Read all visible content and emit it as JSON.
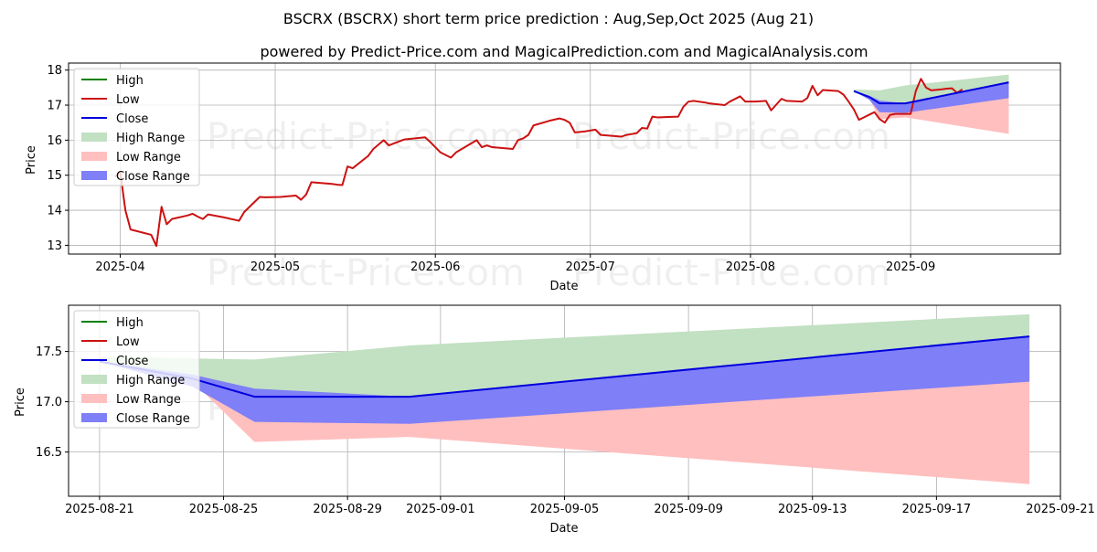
{
  "title": "BSCRX (BSCRX) short term price prediction : Aug,Sep,Oct 2025 (Aug 21)",
  "subtitle": "powered by Predict-Price.com and MagicalPrediction.com and MagicalAnalysis.com",
  "watermark": "Predict-Price.com",
  "colors": {
    "high": "#008000",
    "low": "#cc1111",
    "close": "#0000dd",
    "high_range": "#c2e0c2",
    "low_range": "#ffbfbf",
    "close_range": "#7f7ff7"
  },
  "legend": {
    "placement": "upper-left",
    "items": [
      {
        "label": "High",
        "kind": "line",
        "color": "#008000"
      },
      {
        "label": "Low",
        "kind": "line",
        "color": "#cc1111"
      },
      {
        "label": "Close",
        "kind": "line",
        "color": "#0000dd"
      },
      {
        "label": "High Range",
        "kind": "patch",
        "color": "#c2e0c2"
      },
      {
        "label": "Low Range",
        "kind": "patch",
        "color": "#ffbfbf"
      },
      {
        "label": "Close Range",
        "kind": "patch",
        "color": "#7f7ff7"
      }
    ]
  },
  "chart_data": [
    {
      "type": "line",
      "xlabel": "Date",
      "ylabel": "Price",
      "grid": true,
      "xlim": [
        "2025-03-22",
        "2025-09-30"
      ],
      "ylim": [
        12.75,
        18.2
      ],
      "xticks": [
        "2025-04",
        "2025-05",
        "2025-06",
        "2025-07",
        "2025-08",
        "2025-09"
      ],
      "xtick_dates": [
        "2025-04-01",
        "2025-05-01",
        "2025-06-01",
        "2025-07-01",
        "2025-08-01",
        "2025-09-01"
      ],
      "yticks": [
        13,
        14,
        15,
        16,
        17,
        18
      ],
      "history": [
        [
          "2025-03-31",
          14.95
        ],
        [
          "2025-04-01",
          15.1
        ],
        [
          "2025-04-02",
          14.0
        ],
        [
          "2025-04-03",
          13.45
        ],
        [
          "2025-04-07",
          13.3
        ],
        [
          "2025-04-08",
          12.98
        ],
        [
          "2025-04-09",
          14.1
        ],
        [
          "2025-04-10",
          13.6
        ],
        [
          "2025-04-11",
          13.75
        ],
        [
          "2025-04-14",
          13.85
        ],
        [
          "2025-04-15",
          13.9
        ],
        [
          "2025-04-16",
          13.82
        ],
        [
          "2025-04-17",
          13.75
        ],
        [
          "2025-04-18",
          13.88
        ],
        [
          "2025-04-21",
          13.8
        ],
        [
          "2025-04-24",
          13.7
        ],
        [
          "2025-04-25",
          13.95
        ],
        [
          "2025-04-28",
          14.38
        ],
        [
          "2025-04-29",
          14.37
        ],
        [
          "2025-05-02",
          14.38
        ],
        [
          "2025-05-05",
          14.42
        ],
        [
          "2025-05-06",
          14.3
        ],
        [
          "2025-05-07",
          14.45
        ],
        [
          "2025-05-08",
          14.8
        ],
        [
          "2025-05-12",
          14.75
        ],
        [
          "2025-05-13",
          14.73
        ],
        [
          "2025-05-14",
          14.72
        ],
        [
          "2025-05-15",
          15.25
        ],
        [
          "2025-05-16",
          15.2
        ],
        [
          "2025-05-19",
          15.55
        ],
        [
          "2025-05-20",
          15.75
        ],
        [
          "2025-05-22",
          16.0
        ],
        [
          "2025-05-23",
          15.85
        ],
        [
          "2025-05-26",
          16.02
        ],
        [
          "2025-05-30",
          16.08
        ],
        [
          "2025-05-31",
          15.95
        ],
        [
          "2025-06-02",
          15.65
        ],
        [
          "2025-06-04",
          15.5
        ],
        [
          "2025-06-05",
          15.65
        ],
        [
          "2025-06-09",
          16.0
        ],
        [
          "2025-06-10",
          15.8
        ],
        [
          "2025-06-11",
          15.85
        ],
        [
          "2025-06-12",
          15.8
        ],
        [
          "2025-06-16",
          15.75
        ],
        [
          "2025-06-17",
          16.0
        ],
        [
          "2025-06-18",
          16.05
        ],
        [
          "2025-06-19",
          16.15
        ],
        [
          "2025-06-20",
          16.42
        ],
        [
          "2025-06-23",
          16.55
        ],
        [
          "2025-06-25",
          16.62
        ],
        [
          "2025-06-26",
          16.58
        ],
        [
          "2025-06-27",
          16.5
        ],
        [
          "2025-06-28",
          16.22
        ],
        [
          "2025-06-30",
          16.25
        ],
        [
          "2025-07-02",
          16.3
        ],
        [
          "2025-07-03",
          16.15
        ],
        [
          "2025-07-07",
          16.1
        ],
        [
          "2025-07-08",
          16.15
        ],
        [
          "2025-07-10",
          16.2
        ],
        [
          "2025-07-11",
          16.35
        ],
        [
          "2025-07-12",
          16.33
        ],
        [
          "2025-07-13",
          16.67
        ],
        [
          "2025-07-14",
          16.65
        ],
        [
          "2025-07-16",
          16.66
        ],
        [
          "2025-07-18",
          16.67
        ],
        [
          "2025-07-19",
          16.95
        ],
        [
          "2025-07-20",
          17.1
        ],
        [
          "2025-07-21",
          17.12
        ],
        [
          "2025-07-23",
          17.08
        ],
        [
          "2025-07-24",
          17.05
        ],
        [
          "2025-07-27",
          17.0
        ],
        [
          "2025-07-28",
          17.1
        ],
        [
          "2025-07-30",
          17.25
        ],
        [
          "2025-07-31",
          17.1
        ],
        [
          "2025-08-02",
          17.1
        ],
        [
          "2025-08-04",
          17.12
        ],
        [
          "2025-08-05",
          16.85
        ],
        [
          "2025-08-07",
          17.18
        ],
        [
          "2025-08-08",
          17.12
        ],
        [
          "2025-08-11",
          17.1
        ],
        [
          "2025-08-12",
          17.2
        ],
        [
          "2025-08-13",
          17.55
        ],
        [
          "2025-08-14",
          17.28
        ],
        [
          "2025-08-15",
          17.43
        ],
        [
          "2025-08-18",
          17.4
        ],
        [
          "2025-08-19",
          17.3
        ],
        [
          "2025-08-20",
          17.1
        ],
        [
          "2025-08-21",
          16.88
        ],
        [
          "2025-08-22",
          16.58
        ],
        [
          "2025-08-25",
          16.8
        ],
        [
          "2025-08-26",
          16.6
        ],
        [
          "2025-08-27",
          16.5
        ],
        [
          "2025-08-28",
          16.72
        ],
        [
          "2025-08-29",
          16.75
        ],
        [
          "2025-09-01",
          16.75
        ],
        [
          "2025-09-02",
          17.4
        ],
        [
          "2025-09-03",
          17.75
        ],
        [
          "2025-09-04",
          17.5
        ],
        [
          "2025-09-05",
          17.42
        ],
        [
          "2025-09-07",
          17.45
        ],
        [
          "2025-09-08",
          17.47
        ],
        [
          "2025-09-09",
          17.48
        ],
        [
          "2025-09-10",
          17.35
        ],
        [
          "2025-09-11",
          17.45
        ]
      ]
    },
    {
      "type": "area",
      "xlabel": "Date",
      "ylabel": "Price",
      "grid": true,
      "xlim": [
        "2025-08-20",
        "2025-09-21"
      ],
      "ylim": [
        16.06,
        17.96
      ],
      "xticks": [
        "2025-08-21",
        "2025-08-25",
        "2025-08-29",
        "2025-09-01",
        "2025-09-05",
        "2025-09-09",
        "2025-09-13",
        "2025-09-17",
        "2025-09-21"
      ],
      "yticks": [
        "16.5",
        "17.0",
        "17.5"
      ],
      "forecast_dates": [
        "2025-08-21",
        "2025-08-24",
        "2025-08-26",
        "2025-08-31",
        "2025-09-20"
      ],
      "close": [
        17.4,
        17.23,
        17.05,
        17.05,
        17.65
      ],
      "high_range_top": [
        17.45,
        17.43,
        17.42,
        17.56,
        17.87
      ],
      "low_range_bottom": [
        17.4,
        17.2,
        16.6,
        16.65,
        16.18
      ],
      "close_range_top": [
        17.4,
        17.27,
        17.13,
        17.05,
        17.65
      ],
      "close_range_bottom": [
        17.4,
        17.15,
        16.8,
        16.78,
        17.2
      ]
    }
  ]
}
